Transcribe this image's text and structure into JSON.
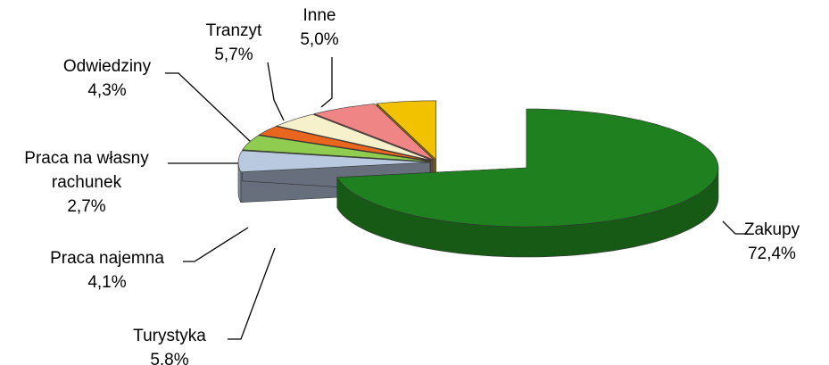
{
  "chart_data": {
    "type": "pie3d",
    "categories": [
      "Zakupy",
      "Turystyka",
      "Praca najemna",
      "Praca na własny rachunek",
      "Odwiedziny",
      "Tranzyt",
      "Inne"
    ],
    "values": [
      72.4,
      5.8,
      4.1,
      2.7,
      4.3,
      5.7,
      5.0
    ],
    "value_labels": [
      "72,4%",
      "5,8%",
      "4,1%",
      "2,7%",
      "4,3%",
      "5,7%",
      "5,0%"
    ],
    "colors": [
      "#1f801f",
      "#b9c9df",
      "#8fcc50",
      "#e8661e",
      "#f6f1cb",
      "#f08585",
      "#f2c200"
    ]
  }
}
